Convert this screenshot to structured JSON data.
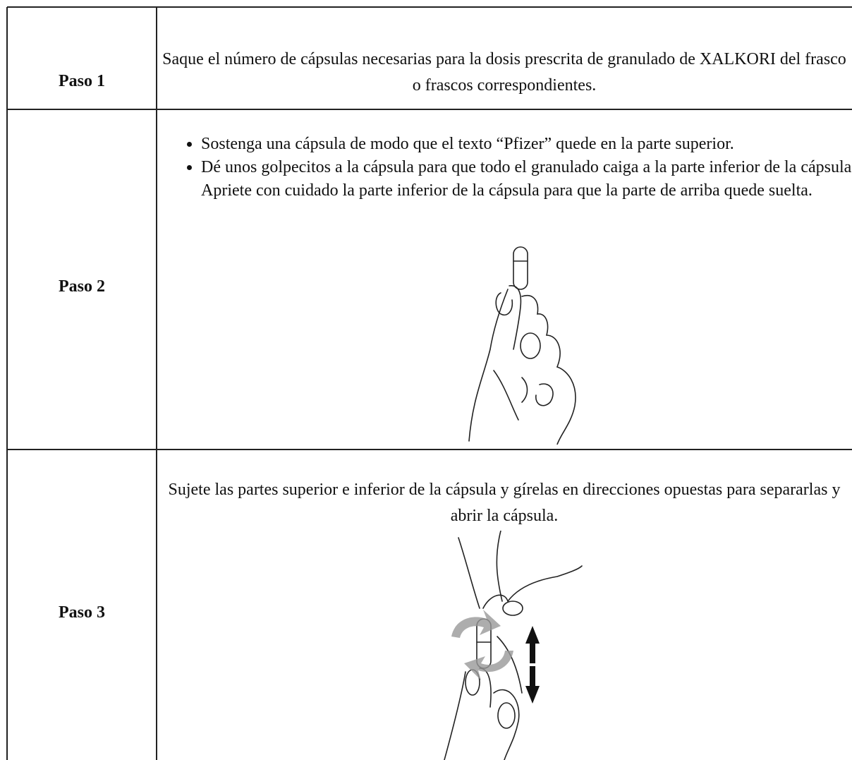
{
  "table": {
    "rows": [
      {
        "step": "Paso 1",
        "text": "Saque el número de cápsulas necesarias para la dosis prescrita de granulado de XALKORI del frasco o frascos correspondientes."
      },
      {
        "step": "Paso 2",
        "bullets": [
          "Sostenga una cápsula de modo que el texto “Pfizer” quede en la parte superior.",
          "Dé unos golpecitos a la cápsula para que todo el granulado caiga a la parte inferior de la cápsula. Apriete con cuidado la parte inferior de la cápsula para que la parte de arriba quede suelta."
        ]
      },
      {
        "step": "Paso 3",
        "text": "Sujete las partes superior e inferior de la cápsula y gírelas en direcciones opuestas para separarlas y abrir la cápsula."
      }
    ]
  }
}
